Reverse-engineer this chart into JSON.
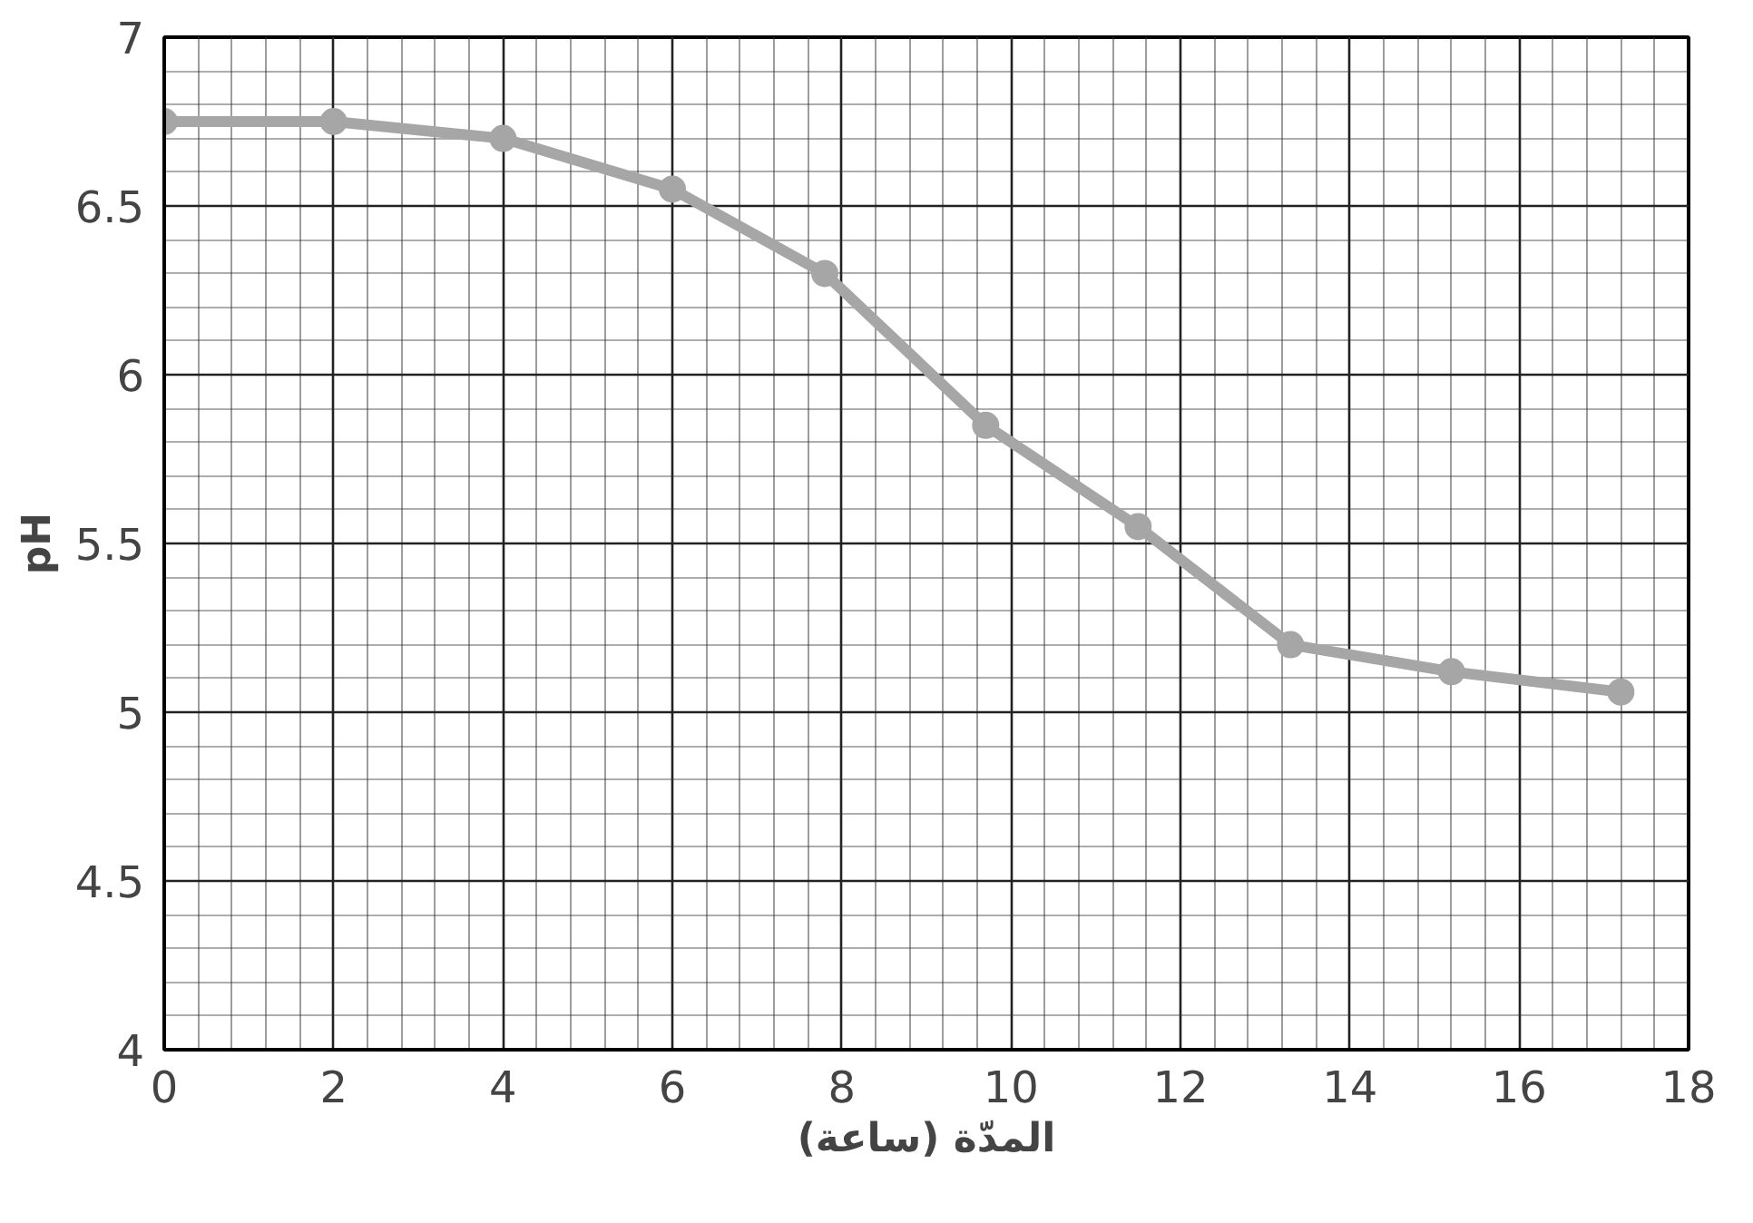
{
  "chart_data": {
    "type": "line",
    "xlabel": "المدّة (ساعة)",
    "ylabel": "pH",
    "x": [
      0,
      2,
      4,
      6,
      7.8,
      9.7,
      11.5,
      13.3,
      15.2,
      17.2
    ],
    "series": [
      {
        "color": "#a6a6a6",
        "values": [
          6.75,
          6.75,
          6.7,
          6.55,
          6.3,
          5.85,
          5.55,
          5.2,
          5.12,
          5.06
        ]
      }
    ],
    "xlim": [
      0,
      18
    ],
    "ylim": [
      4,
      7
    ],
    "xticks": [
      0,
      2,
      4,
      6,
      8,
      10,
      12,
      14,
      16,
      18
    ],
    "yticks": [
      4,
      4.5,
      5,
      5.5,
      6,
      6.5,
      7
    ],
    "grid": true,
    "marker": "circle",
    "line_style": "solid"
  }
}
